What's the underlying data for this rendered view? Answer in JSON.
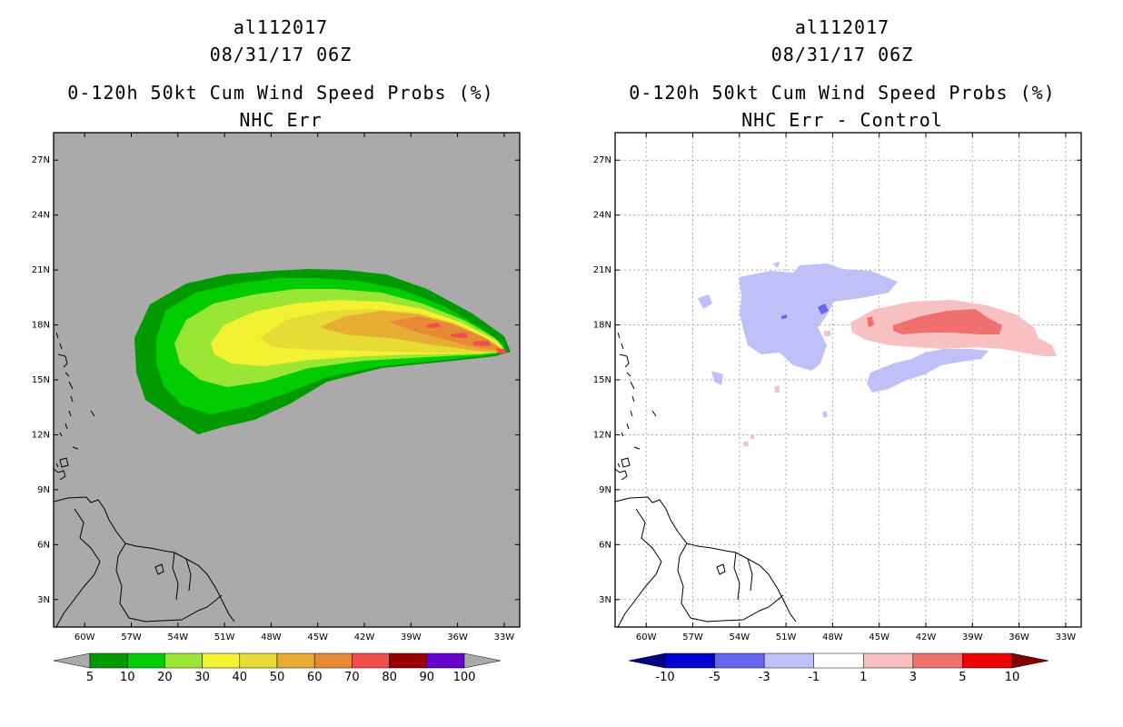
{
  "panels": [
    {
      "storm_id": "al112017",
      "datetime": "08/31/17 06Z",
      "title": "0-120h 50kt Cum Wind Speed Probs (%)",
      "subtitle": "NHC Err",
      "chart_data": {
        "type": "heatmap",
        "x_ticks": [
          "60W",
          "57W",
          "54W",
          "51W",
          "48W",
          "45W",
          "42W",
          "39W",
          "36W",
          "33W"
        ],
        "y_ticks": [
          "27N",
          "24N",
          "21N",
          "18N",
          "15N",
          "12N",
          "9N",
          "6N",
          "3N"
        ],
        "xlim": [
          -62,
          -32
        ],
        "ylim": [
          1.5,
          28.5
        ],
        "background": "#aaaaaa",
        "contour_levels": [
          5,
          10,
          20,
          30,
          40,
          50,
          60,
          70,
          80,
          90,
          100
        ],
        "colorbar": {
          "labels": [
            "5",
            "10",
            "20",
            "30",
            "40",
            "50",
            "60",
            "70",
            "80",
            "90",
            "100"
          ],
          "colors": [
            "#009900",
            "#00cc00",
            "#99e633",
            "#f2f233",
            "#e6dc33",
            "#e6ac33",
            "#e68a33",
            "#f24d4d",
            "#990000",
            "#6600cc"
          ],
          "arrow_left": "#aaaaaa",
          "arrow_right": "#aaaaaa"
        }
      }
    },
    {
      "storm_id": "al112017",
      "datetime": "08/31/17 06Z",
      "title": "0-120h 50kt Cum Wind Speed Probs (%)",
      "subtitle": "NHC Err - Control",
      "chart_data": {
        "type": "heatmap",
        "x_ticks": [
          "60W",
          "57W",
          "54W",
          "51W",
          "48W",
          "45W",
          "42W",
          "39W",
          "36W",
          "33W"
        ],
        "y_ticks": [
          "27N",
          "24N",
          "21N",
          "18N",
          "15N",
          "12N",
          "9N",
          "6N",
          "3N"
        ],
        "xlim": [
          -62,
          -32
        ],
        "ylim": [
          1.5,
          28.5
        ],
        "background": "#ffffff",
        "grid": true,
        "contour_levels": [
          -10,
          -5,
          -3,
          -1,
          1,
          3,
          5,
          10
        ],
        "colorbar": {
          "labels": [
            "-10",
            "-5",
            "-3",
            "-1",
            "1",
            "3",
            "5",
            "10"
          ],
          "colors": [
            "#0000cc",
            "#6666ee",
            "#c0c0f8",
            "#ffffff",
            "#f8c0c0",
            "#f07070",
            "#ee0000"
          ],
          "arrow_left": "#000080",
          "arrow_right": "#800000"
        }
      }
    }
  ]
}
